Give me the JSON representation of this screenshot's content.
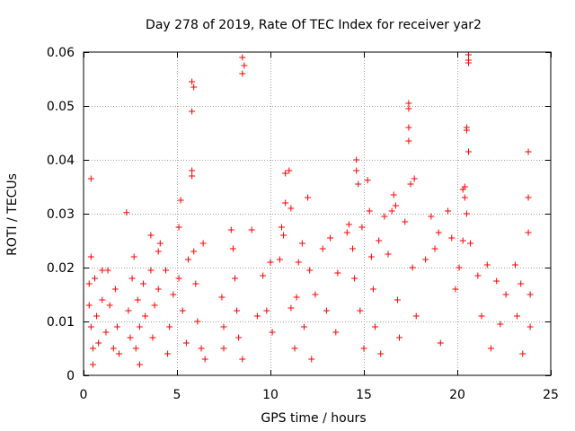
{
  "chart_data": {
    "type": "scatter",
    "title": "Day 278 of 2019, Rate Of TEC Index for receiver yar2",
    "xlabel": "GPS time / hours",
    "ylabel": "ROTI / TECUs",
    "xlim": [
      0,
      25
    ],
    "ylim": [
      0,
      0.06
    ],
    "xticks": [
      0,
      5,
      10,
      15,
      20,
      25
    ],
    "xtick_labels": [
      "0",
      "5",
      "10",
      "15",
      "20",
      "25"
    ],
    "yticks": [
      0,
      0.01,
      0.02,
      0.03,
      0.04,
      0.05,
      0.06
    ],
    "ytick_labels": [
      "0",
      "0.01",
      "0.02",
      "0.03",
      "0.04",
      "0.05",
      "0.06"
    ],
    "grid": true,
    "marker": "plus",
    "marker_color": "#ff0000",
    "series": [
      {
        "name": "ROTI",
        "points": [
          [
            0.4,
            0.0365
          ],
          [
            0.4,
            0.022
          ],
          [
            0.3,
            0.017
          ],
          [
            0.3,
            0.013
          ],
          [
            0.4,
            0.009
          ],
          [
            0.5,
            0.005
          ],
          [
            0.5,
            0.002
          ],
          [
            0.6,
            0.018
          ],
          [
            0.7,
            0.011
          ],
          [
            0.8,
            0.006
          ],
          [
            1.0,
            0.0195
          ],
          [
            1.0,
            0.014
          ],
          [
            1.2,
            0.008
          ],
          [
            1.3,
            0.0195
          ],
          [
            1.4,
            0.013
          ],
          [
            1.6,
            0.005
          ],
          [
            1.7,
            0.016
          ],
          [
            1.8,
            0.009
          ],
          [
            1.9,
            0.004
          ],
          [
            2.3,
            0.0302
          ],
          [
            2.4,
            0.012
          ],
          [
            2.5,
            0.007
          ],
          [
            2.6,
            0.018
          ],
          [
            2.7,
            0.022
          ],
          [
            2.8,
            0.005
          ],
          [
            2.9,
            0.014
          ],
          [
            3.0,
            0.009
          ],
          [
            3.0,
            0.002
          ],
          [
            3.2,
            0.017
          ],
          [
            3.3,
            0.011
          ],
          [
            3.6,
            0.026
          ],
          [
            3.6,
            0.0195
          ],
          [
            3.7,
            0.007
          ],
          [
            3.8,
            0.013
          ],
          [
            4.0,
            0.023
          ],
          [
            4.0,
            0.016
          ],
          [
            4.1,
            0.0245
          ],
          [
            4.4,
            0.0195
          ],
          [
            4.5,
            0.004
          ],
          [
            4.6,
            0.009
          ],
          [
            4.8,
            0.015
          ],
          [
            5.1,
            0.0275
          ],
          [
            5.1,
            0.018
          ],
          [
            5.2,
            0.0325
          ],
          [
            5.3,
            0.012
          ],
          [
            5.5,
            0.006
          ],
          [
            5.6,
            0.0215
          ],
          [
            5.8,
            0.0545
          ],
          [
            5.9,
            0.0535
          ],
          [
            5.8,
            0.049
          ],
          [
            5.8,
            0.038
          ],
          [
            5.8,
            0.037
          ],
          [
            5.9,
            0.023
          ],
          [
            6.0,
            0.017
          ],
          [
            6.1,
            0.01
          ],
          [
            6.3,
            0.005
          ],
          [
            6.4,
            0.0245
          ],
          [
            6.5,
            0.003
          ],
          [
            7.4,
            0.0145
          ],
          [
            7.5,
            0.009
          ],
          [
            7.5,
            0.005
          ],
          [
            7.9,
            0.027
          ],
          [
            8.0,
            0.0235
          ],
          [
            8.1,
            0.018
          ],
          [
            8.2,
            0.012
          ],
          [
            8.3,
            0.007
          ],
          [
            8.5,
            0.003
          ],
          [
            8.5,
            0.059
          ],
          [
            8.6,
            0.0575
          ],
          [
            8.5,
            0.056
          ],
          [
            9.0,
            0.027
          ],
          [
            9.3,
            0.011
          ],
          [
            9.6,
            0.0185
          ],
          [
            9.8,
            0.012
          ],
          [
            10.0,
            0.021
          ],
          [
            10.1,
            0.008
          ],
          [
            10.5,
            0.0215
          ],
          [
            10.6,
            0.0275
          ],
          [
            10.7,
            0.026
          ],
          [
            10.8,
            0.0375
          ],
          [
            10.8,
            0.032
          ],
          [
            11.0,
            0.038
          ],
          [
            11.1,
            0.031
          ],
          [
            11.1,
            0.0125
          ],
          [
            11.3,
            0.005
          ],
          [
            11.4,
            0.0145
          ],
          [
            11.5,
            0.021
          ],
          [
            11.7,
            0.0245
          ],
          [
            11.8,
            0.009
          ],
          [
            12.0,
            0.033
          ],
          [
            12.1,
            0.0195
          ],
          [
            12.2,
            0.003
          ],
          [
            12.4,
            0.015
          ],
          [
            12.8,
            0.0235
          ],
          [
            13.0,
            0.012
          ],
          [
            13.2,
            0.0255
          ],
          [
            13.5,
            0.008
          ],
          [
            13.6,
            0.019
          ],
          [
            14.1,
            0.0265
          ],
          [
            14.2,
            0.028
          ],
          [
            14.4,
            0.0235
          ],
          [
            14.5,
            0.018
          ],
          [
            14.6,
            0.04
          ],
          [
            14.6,
            0.038
          ],
          [
            14.7,
            0.0355
          ],
          [
            14.8,
            0.012
          ],
          [
            14.9,
            0.0275
          ],
          [
            15.0,
            0.005
          ],
          [
            15.2,
            0.0362
          ],
          [
            15.3,
            0.0305
          ],
          [
            15.4,
            0.022
          ],
          [
            15.5,
            0.016
          ],
          [
            15.6,
            0.009
          ],
          [
            15.8,
            0.025
          ],
          [
            15.9,
            0.004
          ],
          [
            16.1,
            0.0295
          ],
          [
            16.3,
            0.0225
          ],
          [
            16.5,
            0.0305
          ],
          [
            16.6,
            0.0335
          ],
          [
            16.7,
            0.0315
          ],
          [
            16.8,
            0.014
          ],
          [
            16.9,
            0.007
          ],
          [
            17.2,
            0.0285
          ],
          [
            17.4,
            0.0505
          ],
          [
            17.4,
            0.0495
          ],
          [
            17.4,
            0.046
          ],
          [
            17.4,
            0.0435
          ],
          [
            17.5,
            0.0355
          ],
          [
            17.7,
            0.0365
          ],
          [
            17.6,
            0.02
          ],
          [
            17.8,
            0.011
          ],
          [
            18.3,
            0.0215
          ],
          [
            18.6,
            0.0295
          ],
          [
            18.8,
            0.0235
          ],
          [
            19.0,
            0.0265
          ],
          [
            19.1,
            0.006
          ],
          [
            19.5,
            0.0305
          ],
          [
            19.7,
            0.0255
          ],
          [
            19.9,
            0.016
          ],
          [
            20.1,
            0.02
          ],
          [
            20.3,
            0.025
          ],
          [
            20.3,
            0.0345
          ],
          [
            20.4,
            0.035
          ],
          [
            20.4,
            0.033
          ],
          [
            20.5,
            0.03
          ],
          [
            20.5,
            0.046
          ],
          [
            20.5,
            0.0455
          ],
          [
            20.6,
            0.0595
          ],
          [
            20.6,
            0.0585
          ],
          [
            20.6,
            0.058
          ],
          [
            20.6,
            0.0415
          ],
          [
            20.7,
            0.0245
          ],
          [
            21.1,
            0.0185
          ],
          [
            21.3,
            0.011
          ],
          [
            21.6,
            0.0205
          ],
          [
            21.8,
            0.005
          ],
          [
            22.1,
            0.0175
          ],
          [
            22.3,
            0.0095
          ],
          [
            22.6,
            0.015
          ],
          [
            23.1,
            0.0205
          ],
          [
            23.4,
            0.017
          ],
          [
            23.2,
            0.011
          ],
          [
            23.5,
            0.004
          ],
          [
            23.8,
            0.0415
          ],
          [
            23.8,
            0.033
          ],
          [
            23.8,
            0.0265
          ],
          [
            23.9,
            0.015
          ],
          [
            23.9,
            0.009
          ]
        ]
      }
    ]
  }
}
